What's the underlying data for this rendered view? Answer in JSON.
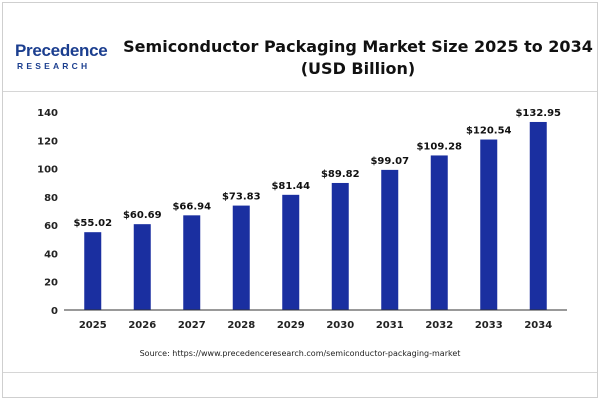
{
  "header": {
    "logo_top": "Precedence",
    "logo_bottom": "RESEARCH",
    "title_line1": "Semiconductor Packaging Market Size 2025 to 2034",
    "title_line2": "(USD Billion)"
  },
  "colors": {
    "bar": "#1a2fa0",
    "logo": "#1b3e8f"
  },
  "source": "Source: https://www.precedenceresearch.com/semiconductor-packaging-market",
  "chart_data": {
    "type": "bar",
    "title": "Semiconductor Packaging Market Size 2025 to 2034 (USD Billion)",
    "xlabel": "",
    "ylabel": "",
    "ylim": [
      0,
      140
    ],
    "yticks": [
      0,
      20,
      40,
      60,
      80,
      100,
      120,
      140
    ],
    "grid": false,
    "categories": [
      "2025",
      "2026",
      "2027",
      "2028",
      "2029",
      "2030",
      "2031",
      "2032",
      "2033",
      "2034"
    ],
    "values": [
      55.02,
      60.69,
      66.94,
      73.83,
      81.44,
      89.82,
      99.07,
      109.28,
      120.54,
      132.95
    ],
    "data_labels": [
      "$55.02",
      "$60.69",
      "$66.94",
      "$73.83",
      "$81.44",
      "$89.82",
      "$99.07",
      "$109.28",
      "$120.54",
      "$132.95"
    ]
  }
}
